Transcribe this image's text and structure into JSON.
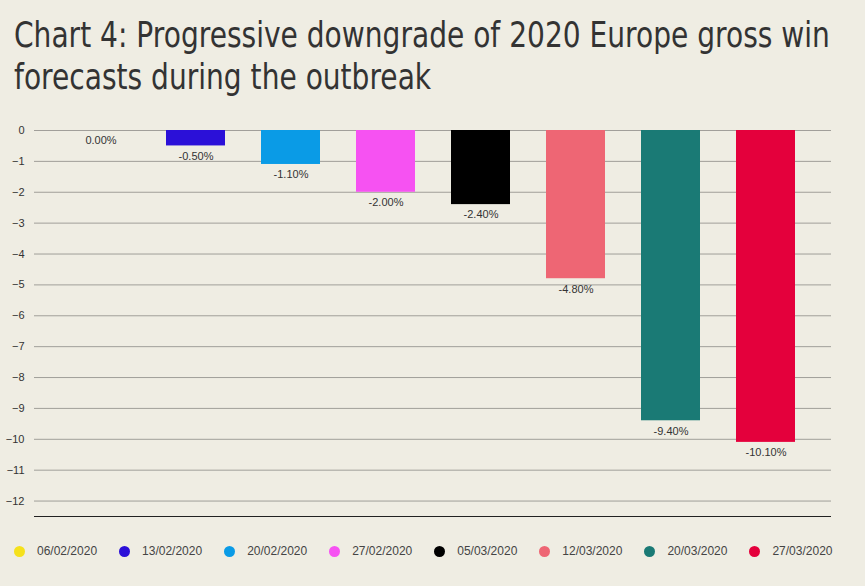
{
  "chart_data": {
    "type": "bar",
    "title": "Chart 4: Progressive downgrade of 2020 Europe gross win forecasts during the outbreak",
    "categories": [
      "06/02/2020",
      "13/02/2020",
      "20/02/2020",
      "27/02/2020",
      "05/03/2020",
      "12/03/2020",
      "20/03/2020",
      "27/03/2020"
    ],
    "values": [
      0,
      -0.5,
      -1.1,
      -2,
      -2.4,
      -4.8,
      -9.4,
      -10.1
    ],
    "value_labels": [
      "0.00%",
      "-0.50%",
      "-1.10%",
      "-2.00%",
      "-2.40%",
      "-4.80%",
      "-9.40%",
      "-10.10%"
    ],
    "colors": [
      "#f5e11c",
      "#2b10d8",
      "#0a9be6",
      "#f652f2",
      "#000000",
      "#ee6674",
      "#1a7a75",
      "#e4003c"
    ],
    "ylim": [
      -12.5,
      0
    ],
    "yticks": [
      0,
      -1,
      -2,
      -3,
      -4,
      -5,
      -6,
      -7,
      -8,
      -9,
      -10,
      -11,
      -12
    ],
    "grid": true,
    "data_labels": true,
    "legend": "bottom",
    "tick_labels": "y"
  }
}
